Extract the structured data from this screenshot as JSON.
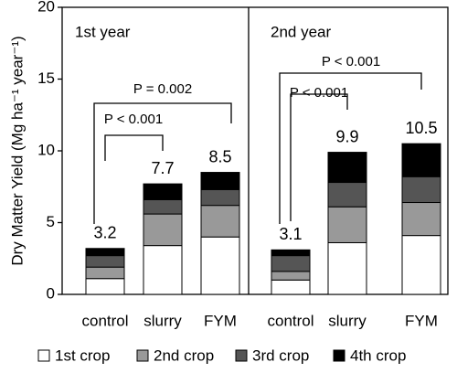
{
  "chart_data": {
    "type": "stacked-bar",
    "ylabel": "Dry Matter Yield (Mg ha⁻¹ year⁻¹)",
    "panels": [
      "1st year",
      "2nd year"
    ],
    "categories": [
      "control",
      "slurry",
      "FYM",
      "control",
      "slurry",
      "FYM"
    ],
    "series": [
      {
        "name": "1st crop",
        "color": "#ffffff",
        "values": [
          1.1,
          3.4,
          4.0,
          1.0,
          3.6,
          4.1
        ]
      },
      {
        "name": "2nd crop",
        "color": "#999999",
        "values": [
          0.8,
          2.2,
          2.2,
          0.6,
          2.5,
          2.3
        ]
      },
      {
        "name": "3rd crop",
        "color": "#555555",
        "values": [
          0.8,
          1.0,
          1.1,
          1.1,
          1.7,
          1.8
        ]
      },
      {
        "name": "4th crop",
        "color": "#000000",
        "values": [
          0.5,
          1.1,
          1.2,
          0.4,
          2.1,
          2.3
        ]
      }
    ],
    "totals": [
      3.2,
      7.7,
      8.5,
      3.1,
      9.9,
      10.5
    ],
    "annotations": [
      "P < 0.001",
      "P = 0.002",
      "P < 0.001",
      "P < 0.001"
    ],
    "ylim": [
      0,
      20
    ],
    "yticks": [
      0,
      5,
      10,
      15,
      20
    ]
  }
}
